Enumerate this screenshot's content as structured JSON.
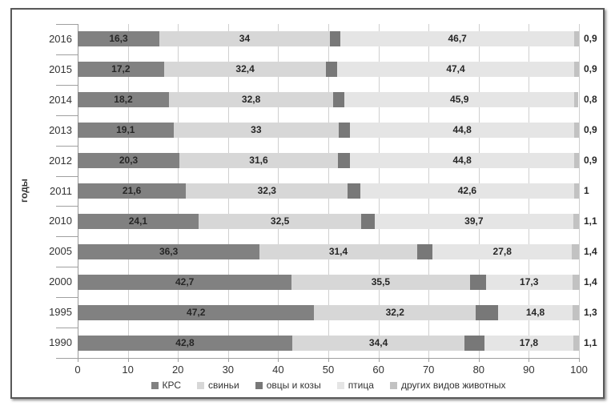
{
  "figure": {
    "background": "#ffffff",
    "border_color": "#585858"
  },
  "chart_data": {
    "type": "bar",
    "stacked": true,
    "orientation": "horizontal",
    "title": "",
    "xlabel": "",
    "ylabel": "годы",
    "xlim": [
      0,
      100
    ],
    "x_ticks": [
      "0",
      "10",
      "20",
      "30",
      "40",
      "50",
      "60",
      "70",
      "80",
      "90",
      "100"
    ],
    "grid": true,
    "legend_position": "bottom",
    "series": [
      {
        "name": "КРС",
        "color": "#818181"
      },
      {
        "name": "свиньи",
        "color": "#d7d7d7"
      },
      {
        "name": "овцы и козы",
        "color": "#787878"
      },
      {
        "name": "птица",
        "color": "#e5e5e5"
      },
      {
        "name": "других видов животных",
        "color": "#c2c2c2"
      }
    ],
    "categories": [
      "2016",
      "2015",
      "2014",
      "2013",
      "2012",
      "2011",
      "2010",
      "2005",
      "2000",
      "1995",
      "1990"
    ],
    "rows": [
      {
        "year": "2016",
        "values": [
          16.3,
          34,
          2.1,
          46.7,
          0.9
        ],
        "labels": [
          "16,3",
          "34",
          "2,1",
          "46,7",
          "0,9"
        ]
      },
      {
        "year": "2015",
        "values": [
          17.2,
          32.4,
          2.1,
          47.4,
          0.9
        ],
        "labels": [
          "17,2",
          "32,4",
          "2,1",
          "47,4",
          "0,9"
        ]
      },
      {
        "year": "2014",
        "values": [
          18.2,
          32.8,
          2.2,
          45.9,
          0.8
        ],
        "labels": [
          "18,2",
          "32,8",
          "2,2",
          "45,9",
          "0,8"
        ]
      },
      {
        "year": "2013",
        "values": [
          19.1,
          33,
          2.2,
          44.8,
          0.9
        ],
        "labels": [
          "19,1",
          "33",
          "2,2",
          "44,8",
          "0,9"
        ]
      },
      {
        "year": "2012",
        "values": [
          20.3,
          31.6,
          2.4,
          44.8,
          0.9
        ],
        "labels": [
          "20,3",
          "31,6",
          "2,4",
          "44,8",
          "0,9"
        ]
      },
      {
        "year": "2011",
        "values": [
          21.6,
          32.3,
          2.5,
          42.6,
          1
        ],
        "labels": [
          "21,6",
          "32,3",
          "2,5",
          "42,6",
          "1"
        ]
      },
      {
        "year": "2010",
        "values": [
          24.1,
          32.5,
          2.6,
          39.7,
          1.1
        ],
        "labels": [
          "24,1",
          "32,5",
          "2,6",
          "39,7",
          "1,1"
        ]
      },
      {
        "year": "2005",
        "values": [
          36.3,
          31.4,
          3.1,
          27.8,
          1.4
        ],
        "labels": [
          "36,3",
          "31,4",
          "3,1",
          "27,8",
          "1,4"
        ]
      },
      {
        "year": "2000",
        "values": [
          42.7,
          35.5,
          3.2,
          17.3,
          1.4
        ],
        "labels": [
          "42,7",
          "35,5",
          "3,2",
          "17,3",
          "1,4"
        ]
      },
      {
        "year": "1995",
        "values": [
          47.2,
          32.2,
          4.5,
          14.8,
          1.3
        ],
        "labels": [
          "47,2",
          "32,2",
          "4,5",
          "14,8",
          "1,3"
        ]
      },
      {
        "year": "1990",
        "values": [
          42.8,
          34.4,
          3.9,
          17.8,
          1.1
        ],
        "labels": [
          "42,8",
          "34,4",
          "3,9",
          "17,8",
          "1,1"
        ]
      }
    ]
  }
}
